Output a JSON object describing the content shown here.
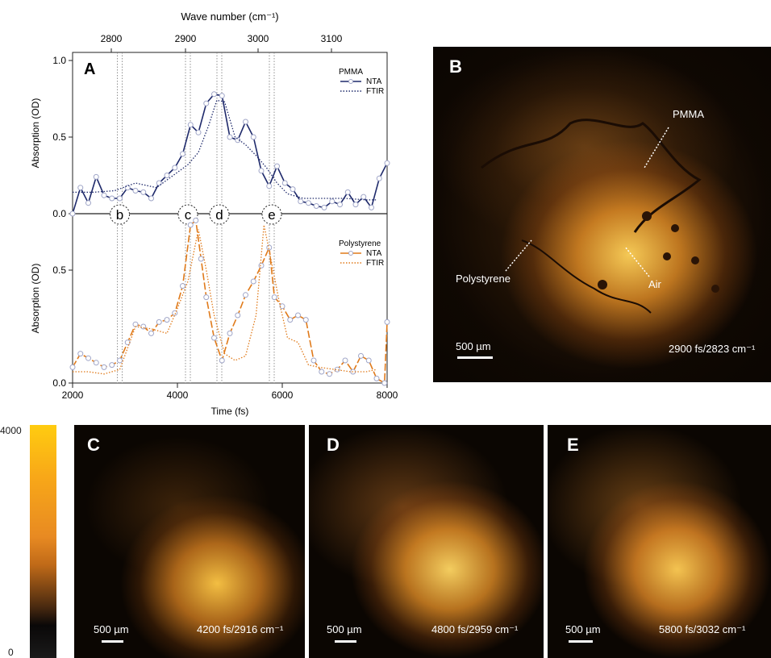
{
  "chart_data": [
    {
      "panel": "A",
      "type": "line",
      "top_axis_label": "Wave number (cm⁻¹)",
      "top_ticks": [
        2800,
        2900,
        3000,
        3100
      ],
      "xlabel": "Time (fs)",
      "xlim": [
        2000,
        8000
      ],
      "xticks": [
        2000,
        4000,
        6000,
        8000
      ],
      "markers": [
        {
          "label": "b",
          "x": 2900
        },
        {
          "label": "c",
          "x": 4200
        },
        {
          "label": "d",
          "x": 4800
        },
        {
          "label": "e",
          "x": 5800
        }
      ],
      "subplots": [
        {
          "ylabel": "Absorption (OD)",
          "ylim": [
            0,
            1.0
          ],
          "yticks": [
            0.0,
            0.5,
            1.0
          ],
          "legend_title": "PMMA",
          "color": "#1f2a6b",
          "series": [
            {
              "name": "NTA",
              "style": "solid-markers",
              "x": [
                2000,
                2150,
                2300,
                2450,
                2600,
                2750,
                2900,
                3050,
                3200,
                3350,
                3500,
                3650,
                3800,
                3950,
                4100,
                4250,
                4400,
                4550,
                4700,
                4850,
                5000,
                5150,
                5300,
                5450,
                5600,
                5750,
                5900,
                6050,
                6200,
                6350,
                6500,
                6650,
                6800,
                6950,
                7100,
                7250,
                7400,
                7550,
                7700,
                7850,
                8000
              ],
              "y": [
                0.0,
                0.17,
                0.07,
                0.24,
                0.12,
                0.1,
                0.1,
                0.17,
                0.15,
                0.14,
                0.1,
                0.2,
                0.25,
                0.3,
                0.39,
                0.58,
                0.53,
                0.72,
                0.78,
                0.77,
                0.5,
                0.48,
                0.6,
                0.5,
                0.28,
                0.18,
                0.31,
                0.2,
                0.16,
                0.08,
                0.07,
                0.05,
                0.04,
                0.08,
                0.06,
                0.14,
                0.06,
                0.11,
                0.04,
                0.23,
                0.33
              ]
            },
            {
              "name": "FTIR",
              "style": "dotted",
              "x": [
                2000,
                2400,
                2800,
                3200,
                3600,
                3800,
                4000,
                4200,
                4400,
                4600,
                4750,
                4900,
                5100,
                5300,
                5500,
                5700,
                5900,
                6100,
                6400,
                6800,
                7200,
                7600,
                7800
              ],
              "y": [
                0.14,
                0.14,
                0.15,
                0.2,
                0.17,
                0.22,
                0.27,
                0.32,
                0.4,
                0.58,
                0.74,
                0.73,
                0.5,
                0.45,
                0.38,
                0.3,
                0.2,
                0.13,
                0.1,
                0.1,
                0.1,
                0.09,
                0.09
              ]
            }
          ]
        },
        {
          "ylabel": "Absorption (OD)",
          "ylim": [
            0,
            0.75
          ],
          "yticks": [
            0.0,
            0.5
          ],
          "legend_title": "Polystyrene",
          "color": "#e07a1a",
          "series": [
            {
              "name": "NTA",
              "style": "dashed-markers",
              "x": [
                2000,
                2150,
                2300,
                2450,
                2600,
                2750,
                2900,
                3050,
                3200,
                3350,
                3500,
                3650,
                3800,
                3950,
                4100,
                4250,
                4350,
                4450,
                4550,
                4700,
                4850,
                5000,
                5150,
                5300,
                5450,
                5600,
                5750,
                5850,
                6000,
                6150,
                6300,
                6450,
                6600,
                6750,
                6900,
                7050,
                7200,
                7350,
                7500,
                7650,
                7800,
                7950,
                8000
              ],
              "y": [
                0.07,
                0.13,
                0.11,
                0.09,
                0.07,
                0.08,
                0.1,
                0.18,
                0.26,
                0.25,
                0.22,
                0.27,
                0.28,
                0.31,
                0.43,
                0.7,
                0.72,
                0.55,
                0.38,
                0.2,
                0.1,
                0.22,
                0.3,
                0.39,
                0.45,
                0.52,
                0.6,
                0.38,
                0.34,
                0.28,
                0.3,
                0.28,
                0.1,
                0.05,
                0.04,
                0.06,
                0.1,
                0.05,
                0.12,
                0.1,
                0.02,
                0.0,
                0.27
              ]
            },
            {
              "name": "FTIR",
              "style": "dotted",
              "x": [
                2000,
                2300,
                2600,
                2900,
                3200,
                3500,
                3800,
                4000,
                4200,
                4400,
                4550,
                4700,
                4900,
                5100,
                5300,
                5500,
                5650,
                5800,
                5950,
                6100,
                6300,
                6500,
                6700,
                7000,
                7300,
                7600,
                7800
              ],
              "y": [
                0.05,
                0.05,
                0.04,
                0.06,
                0.25,
                0.24,
                0.22,
                0.33,
                0.45,
                0.68,
                0.5,
                0.3,
                0.13,
                0.1,
                0.12,
                0.3,
                0.7,
                0.53,
                0.35,
                0.2,
                0.18,
                0.08,
                0.07,
                0.06,
                0.05,
                0.05,
                0.06
              ]
            }
          ]
        }
      ]
    }
  ],
  "panels": {
    "B": {
      "label": "B",
      "caption": "2900 fs/2823 cm⁻¹",
      "scale": "500 µm",
      "annotations": {
        "pmma": "PMMA",
        "polystyrene": "Polystyrene",
        "air": "Air"
      }
    },
    "C": {
      "label": "C",
      "caption": "4200 fs/2916 cm⁻¹",
      "scale": "500 µm"
    },
    "D": {
      "label": "D",
      "caption": "4800 fs/2959 cm⁻¹",
      "scale": "500 µm"
    },
    "E": {
      "label": "E",
      "caption": "5800 fs/3032 cm⁻¹",
      "scale": "500 µm"
    }
  },
  "colorbar": {
    "max": "4000",
    "min": "0"
  }
}
